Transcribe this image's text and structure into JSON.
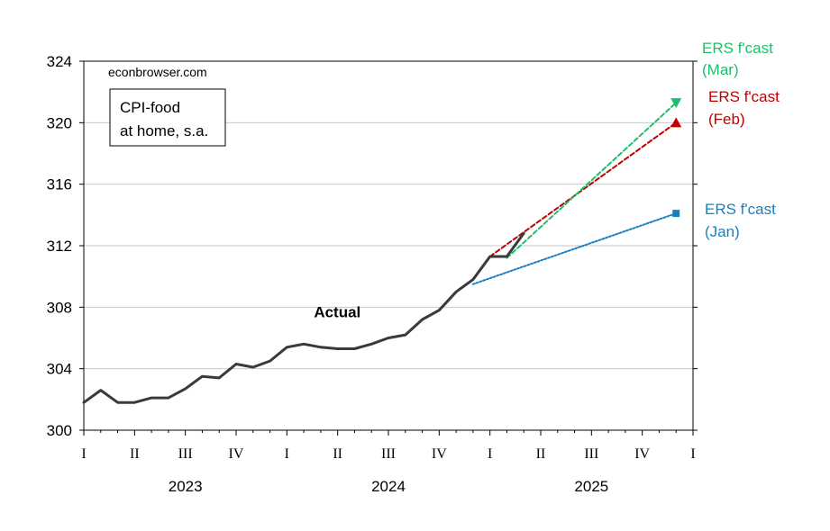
{
  "chart_data": {
    "type": "line",
    "ylim": [
      300,
      324
    ],
    "yticks": [
      300,
      304,
      308,
      312,
      316,
      320,
      324
    ],
    "xlim": [
      2023.0,
      2026.0
    ],
    "quarter_labels": [
      "I",
      "II",
      "III",
      "IV",
      "I",
      "II",
      "III",
      "IV",
      "I",
      "II",
      "III",
      "IV",
      "I"
    ],
    "year_labels": [
      "2023",
      "2024",
      "2025"
    ],
    "watermark": "econbrowser.com",
    "legend_box": [
      "CPI-food",
      "at home, s.a."
    ],
    "grid": true,
    "colors": {
      "actual": "#3a3a3a",
      "jan": "#1a7fc0",
      "feb": "#c00000",
      "mar": "#1fbf6a"
    },
    "series": [
      {
        "key": "actual",
        "name": "Actual",
        "style": "solid",
        "x": [
          "2023-01",
          "2023-02",
          "2023-03",
          "2023-04",
          "2023-05",
          "2023-06",
          "2023-07",
          "2023-08",
          "2023-09",
          "2023-10",
          "2023-11",
          "2023-12",
          "2024-01",
          "2024-02",
          "2024-03",
          "2024-04",
          "2024-05",
          "2024-06",
          "2024-07",
          "2024-08",
          "2024-09",
          "2024-10",
          "2024-11",
          "2024-12",
          "2025-01",
          "2025-02",
          "2025-03"
        ],
        "values": [
          301.8,
          302.6,
          301.8,
          301.8,
          302.1,
          302.1,
          302.7,
          303.5,
          303.4,
          304.3,
          304.1,
          304.5,
          305.4,
          305.6,
          305.4,
          305.3,
          305.3,
          305.6,
          306.0,
          306.2,
          307.2,
          307.8,
          309.0,
          309.8,
          311.3,
          311.3,
          312.8
        ]
      },
      {
        "key": "jan",
        "name": "ERS f'cast (Jan)",
        "style": "dotted",
        "marker": "square",
        "x": [
          "2024-12",
          "2025-12"
        ],
        "values": [
          309.5,
          314.1
        ]
      },
      {
        "key": "feb",
        "name": "ERS f'cast (Feb)",
        "style": "dashed",
        "marker": "triangle",
        "x": [
          "2025-01",
          "2025-12"
        ],
        "values": [
          311.3,
          320.0
        ]
      },
      {
        "key": "mar",
        "name": "ERS f'cast (Mar)",
        "style": "dashed",
        "marker": "triangle-down",
        "x": [
          "2025-02",
          "2025-12"
        ],
        "values": [
          311.2,
          321.3
        ]
      }
    ],
    "annotations": [
      {
        "text": "Actual",
        "x": "2024-01",
        "y": 307.7
      }
    ],
    "forecast_labels": {
      "mar": [
        "ERS f'cast",
        "(Mar)"
      ],
      "feb": [
        "ERS f'cast",
        "(Feb)"
      ],
      "jan": [
        "ERS f'cast",
        "(Jan)"
      ]
    }
  }
}
